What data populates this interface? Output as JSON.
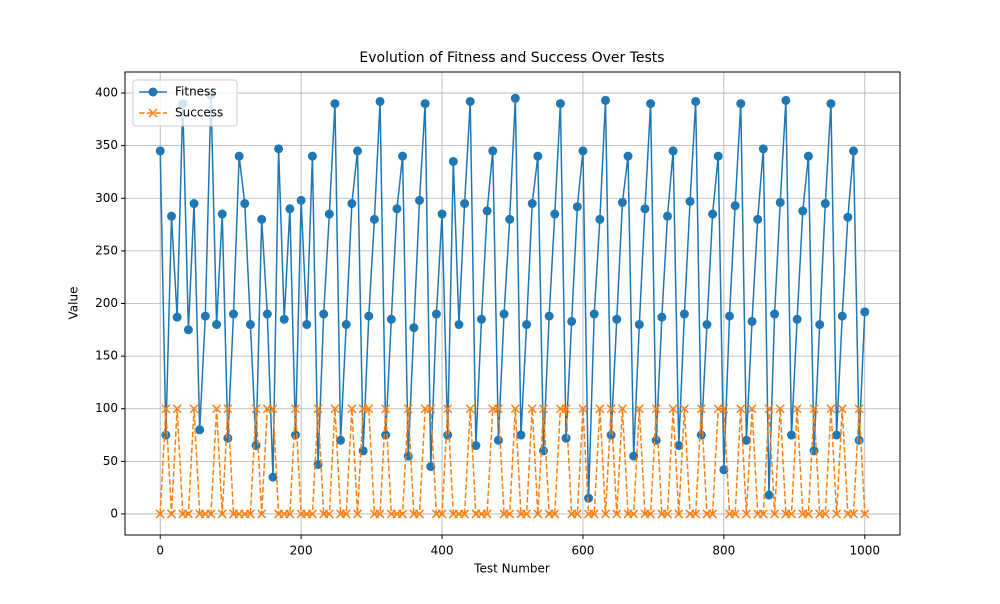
{
  "chart_data": {
    "type": "line",
    "title": "Evolution of Fitness and Success Over Tests",
    "xlabel": "Test Number",
    "ylabel": "Value",
    "x": [
      0,
      8,
      16,
      24,
      32,
      40,
      48,
      56,
      64,
      72,
      80,
      88,
      96,
      104,
      112,
      120,
      128,
      136,
      144,
      152,
      160,
      168,
      176,
      184,
      192,
      200,
      208,
      216,
      224,
      232,
      240,
      248,
      256,
      264,
      272,
      280,
      288,
      296,
      304,
      312,
      320,
      328,
      336,
      344,
      352,
      360,
      368,
      376,
      384,
      392,
      400,
      408,
      416,
      424,
      432,
      440,
      448,
      456,
      464,
      472,
      480,
      488,
      496,
      504,
      512,
      520,
      528,
      536,
      544,
      552,
      560,
      568,
      576,
      584,
      592,
      600,
      608,
      616,
      624,
      632,
      640,
      648,
      656,
      664,
      672,
      680,
      688,
      696,
      704,
      712,
      720,
      728,
      736,
      744,
      752,
      760,
      768,
      776,
      784,
      792,
      800,
      808,
      816,
      824,
      832,
      840,
      848,
      856,
      864,
      872,
      880,
      888,
      896,
      904,
      912,
      920,
      928,
      936,
      944,
      952,
      960,
      968,
      976,
      984,
      992,
      1000
    ],
    "series": [
      {
        "name": "Fitness",
        "color": "#1f77b4",
        "marker": "circle",
        "linestyle": "solid",
        "values": [
          345,
          75,
          283,
          187,
          390,
          175,
          295,
          80,
          188,
          398,
          180,
          285,
          72,
          190,
          340,
          295,
          180,
          65,
          280,
          190,
          35,
          347,
          185,
          290,
          75,
          298,
          180,
          340,
          47,
          190,
          285,
          390,
          70,
          180,
          295,
          345,
          60,
          188,
          280,
          392,
          75,
          185,
          290,
          340,
          55,
          177,
          298,
          390,
          45,
          190,
          285,
          75,
          335,
          180,
          295,
          392,
          65,
          185,
          288,
          345,
          70,
          190,
          280,
          395,
          75,
          180,
          295,
          340,
          60,
          188,
          285,
          390,
          72,
          183,
          292,
          345,
          15,
          190,
          280,
          393,
          75,
          185,
          296,
          340,
          55,
          180,
          290,
          390,
          70,
          187,
          283,
          345,
          65,
          190,
          297,
          392,
          75,
          180,
          285,
          340,
          42,
          188,
          293,
          390,
          70,
          183,
          280,
          347,
          18,
          190,
          296,
          393,
          75,
          185,
          288,
          340,
          60,
          180,
          295,
          390,
          75,
          188,
          282,
          345,
          70,
          192
        ]
      },
      {
        "name": "Success",
        "color": "#ff7f0e",
        "marker": "x",
        "linestyle": "dashed",
        "values": [
          0,
          100,
          0,
          100,
          0,
          0,
          100,
          0,
          0,
          0,
          100,
          0,
          100,
          0,
          0,
          0,
          0,
          100,
          0,
          100,
          100,
          0,
          0,
          0,
          100,
          0,
          0,
          0,
          100,
          0,
          0,
          100,
          0,
          0,
          100,
          0,
          100,
          100,
          0,
          0,
          100,
          0,
          0,
          0,
          100,
          0,
          0,
          100,
          100,
          0,
          0,
          100,
          0,
          0,
          0,
          100,
          0,
          0,
          0,
          100,
          100,
          0,
          0,
          100,
          0,
          0,
          100,
          0,
          100,
          0,
          0,
          100,
          100,
          0,
          0,
          100,
          0,
          0,
          100,
          0,
          100,
          0,
          100,
          0,
          0,
          100,
          0,
          0,
          100,
          0,
          0,
          100,
          0,
          100,
          0,
          0,
          100,
          0,
          0,
          100,
          100,
          0,
          0,
          100,
          0,
          100,
          0,
          0,
          100,
          0,
          100,
          0,
          0,
          100,
          0,
          0,
          100,
          0,
          0,
          100,
          0,
          100,
          0,
          0,
          100,
          0
        ]
      }
    ],
    "xlim": [
      -50,
      1050
    ],
    "ylim": [
      -20,
      420
    ],
    "xticks": [
      0,
      200,
      400,
      600,
      800,
      1000
    ],
    "yticks": [
      0,
      50,
      100,
      150,
      200,
      250,
      300,
      350,
      400
    ],
    "grid": true,
    "legend": "upper left"
  }
}
